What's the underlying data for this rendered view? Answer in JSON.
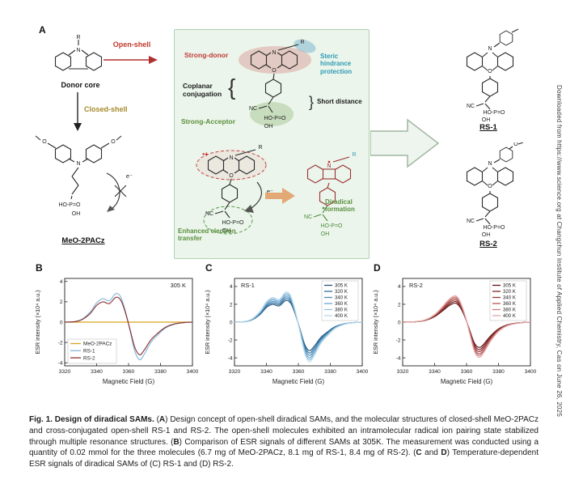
{
  "figure": {
    "panel_labels": {
      "a": "A",
      "b": "B",
      "c": "C",
      "d": "D"
    }
  },
  "panel_a": {
    "donor_core": "Donor core",
    "open_shell": "Open-shell",
    "closed_shell": "Closed-shell",
    "meo2pacz": "MeO-2PACz",
    "strong_donor": "Strong-donor",
    "coplanar": "Coplanar conjugation",
    "strong_acceptor": "Strong-Acceptor",
    "steric": "Steric hindrance protection",
    "short_distance": "Short distance",
    "enhanced": "Enhanced electron transfer",
    "diradical": "Diradical formation",
    "rs1": "RS-1",
    "rs2": "RS-2",
    "brace_left": "{",
    "brace_right": "}"
  },
  "atoms": {
    "N": "N",
    "O": "O",
    "R": "R",
    "NC": "NC",
    "HOPO": "HO-P=O",
    "OH": "OH",
    "e": "e⁻",
    "radical": "•+"
  },
  "chart_data": [
    {
      "id": "B",
      "type": "line",
      "annotation": {
        "text": "305 K",
        "pos": "top-right"
      },
      "xlabel": "Magnetic Field (G)",
      "ylabel": "ESR intensity (×10⁴ a.u.)",
      "xlim": [
        3320,
        3400
      ],
      "ylim": [
        -4.3,
        4.3
      ],
      "x_ticks": [
        3320,
        3340,
        3360,
        3380,
        3400
      ],
      "y_ticks": [
        -4,
        -2,
        0,
        2,
        4
      ],
      "legend": {
        "position": "bottom-left",
        "items": [
          {
            "label": "MeO-2PACz",
            "color": "#d8a520"
          },
          {
            "label": "RS-1",
            "color": "#85b6d9"
          },
          {
            "label": "RS-2",
            "color": "#8a3333"
          }
        ]
      },
      "series": [
        {
          "name": "MeO-2PACz",
          "color": "#d8a520",
          "x": [
            3320,
            3400
          ],
          "y": [
            0,
            0
          ]
        },
        {
          "name": "RS-1",
          "color": "#85b6d9",
          "x": [
            3320,
            3326,
            3331,
            3336,
            3340,
            3344,
            3348,
            3352,
            3355,
            3358,
            3361,
            3364,
            3367,
            3370,
            3374,
            3378,
            3383,
            3389,
            3395,
            3400
          ],
          "y": [
            0,
            0.05,
            0.3,
            1.0,
            1.9,
            2.3,
            2.1,
            2.8,
            2.5,
            1.1,
            -0.9,
            -2.9,
            -3.7,
            -3.1,
            -2.0,
            -1.3,
            -0.6,
            -0.2,
            -0.05,
            0
          ]
        },
        {
          "name": "RS-2",
          "color": "#8a3333",
          "x": [
            3320,
            3326,
            3331,
            3336,
            3340,
            3344,
            3348,
            3352,
            3355,
            3358,
            3361,
            3364,
            3367,
            3370,
            3374,
            3378,
            3383,
            3389,
            3395,
            3400
          ],
          "y": [
            0,
            0.04,
            0.26,
            0.85,
            1.65,
            2.0,
            1.82,
            2.44,
            2.18,
            0.96,
            -0.78,
            -2.52,
            -3.22,
            -2.7,
            -1.74,
            -1.13,
            -0.52,
            -0.17,
            -0.04,
            0
          ]
        }
      ]
    },
    {
      "id": "C",
      "type": "line",
      "annotation": {
        "text": "RS-1",
        "pos": "top-left"
      },
      "xlabel": "Magnetic Field (G)",
      "ylabel": "ESR intensity (×10⁴ a.u.)",
      "xlim": [
        3320,
        3400
      ],
      "ylim": [
        -4.9,
        4.9
      ],
      "x_ticks": [
        3320,
        3340,
        3360,
        3380,
        3400
      ],
      "y_ticks": [
        -4,
        -2,
        0,
        2,
        4
      ],
      "base": {
        "x": [
          3320,
          3326,
          3331,
          3336,
          3340,
          3344,
          3348,
          3352,
          3355,
          3358,
          3361,
          3364,
          3367,
          3370,
          3374,
          3378,
          3383,
          3389,
          3395,
          3400
        ],
        "y": [
          0,
          0.06,
          0.36,
          1.2,
          2.28,
          2.76,
          2.52,
          3.36,
          3.0,
          1.32,
          -1.08,
          -3.48,
          -4.44,
          -3.72,
          -2.4,
          -1.56,
          -0.72,
          -0.24,
          -0.06,
          0
        ]
      },
      "legend": {
        "position": "top-right",
        "items": [
          {
            "label": "305 K",
            "color": "#24567e"
          },
          {
            "label": "320 K",
            "color": "#33719f"
          },
          {
            "label": "340 K",
            "color": "#4c8cba"
          },
          {
            "label": "360 K",
            "color": "#6fa8cf"
          },
          {
            "label": "380 K",
            "color": "#93c2e0"
          },
          {
            "label": "400 K",
            "color": "#b8d8ec"
          }
        ]
      },
      "series": [
        {
          "name": "305 K",
          "color": "#24567e",
          "scale": 0.72
        },
        {
          "name": "320 K",
          "color": "#33719f",
          "scale": 0.78
        },
        {
          "name": "340 K",
          "color": "#4c8cba",
          "scale": 0.84
        },
        {
          "name": "360 K",
          "color": "#6fa8cf",
          "scale": 0.9
        },
        {
          "name": "380 K",
          "color": "#93c2e0",
          "scale": 0.95
        },
        {
          "name": "400 K",
          "color": "#b8d8ec",
          "scale": 1.0
        }
      ]
    },
    {
      "id": "D",
      "type": "line",
      "annotation": {
        "text": "RS-2",
        "pos": "top-left"
      },
      "xlabel": "Magnetic Field (G)",
      "ylabel": "ESR intensity (×10⁴ a.u.)",
      "xlim": [
        3320,
        3400
      ],
      "ylim": [
        -4.9,
        4.9
      ],
      "x_ticks": [
        3320,
        3340,
        3360,
        3380,
        3400
      ],
      "y_ticks": [
        -4,
        -2,
        0,
        2,
        4
      ],
      "base": {
        "x": [
          3320,
          3328,
          3334,
          3340,
          3345,
          3349,
          3353,
          3356,
          3359,
          3362,
          3365,
          3368,
          3371,
          3375,
          3380,
          3386,
          3393,
          3400
        ],
        "y": [
          0,
          0.05,
          0.25,
          0.85,
          1.75,
          2.55,
          2.95,
          2.3,
          0.8,
          -1.3,
          -3.3,
          -3.95,
          -3.35,
          -2.15,
          -1.05,
          -0.38,
          -0.1,
          0
        ]
      },
      "legend": {
        "position": "top-right",
        "items": [
          {
            "label": "305 K",
            "color": "#5f1a1a"
          },
          {
            "label": "320 K",
            "color": "#7c2626"
          },
          {
            "label": "340 K",
            "color": "#993636"
          },
          {
            "label": "360 K",
            "color": "#b45454"
          },
          {
            "label": "380 K",
            "color": "#cc7d7d"
          },
          {
            "label": "400 K",
            "color": "#e2a8a8"
          }
        ]
      },
      "series": [
        {
          "name": "305 K",
          "color": "#5f1a1a",
          "scale": 0.72
        },
        {
          "name": "320 K",
          "color": "#7c2626",
          "scale": 0.78
        },
        {
          "name": "340 K",
          "color": "#993636",
          "scale": 0.84
        },
        {
          "name": "360 K",
          "color": "#b45454",
          "scale": 0.9
        },
        {
          "name": "380 K",
          "color": "#cc7d7d",
          "scale": 0.95
        },
        {
          "name": "400 K",
          "color": "#e2a8a8",
          "scale": 1.0
        }
      ]
    }
  ],
  "caption": {
    "segments": [
      {
        "text": "Fig. 1. Design of diradical SAMs. ",
        "bold": true
      },
      {
        "text": "(",
        "bold": false
      },
      {
        "text": "A",
        "bold": true
      },
      {
        "text": ") Design concept of open-shell diradical SAMs, and the molecular structures of closed-shell MeO-2PACz and cross-conjugated open-shell RS-1 and RS-2. The open-shell molecules exhibited an intramolecular radical ion pairing state stabilized through multiple resonance structures. (",
        "bold": false
      },
      {
        "text": "B",
        "bold": true
      },
      {
        "text": ") Comparison of ESR signals of different SAMs at 305K. The measurement was conducted using a quantity of 0.02 mmol for the three molecules (6.7 mg of MeO-2PACz, 8.1 mg of RS-1, 8.4 mg of RS-2). (",
        "bold": false
      },
      {
        "text": "C",
        "bold": true
      },
      {
        "text": " and ",
        "bold": false
      },
      {
        "text": "D",
        "bold": true
      },
      {
        "text": ") Temperature-dependent ESR signals of diradical SAMs of (C) RS-1 and (D) RS-2.",
        "bold": false
      }
    ]
  },
  "sidebar": {
    "text": "Downloaded from https://www.science.org at Changchun Institute of Applied Chemistry, Cas on June 26, 2025"
  }
}
